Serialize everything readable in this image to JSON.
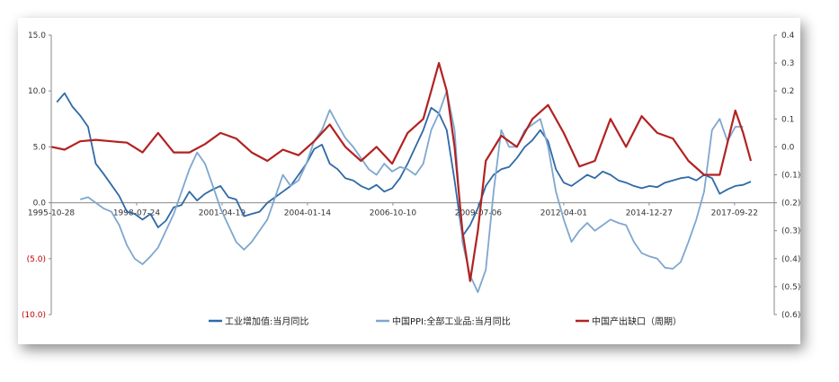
{
  "chart_data": {
    "type": "line",
    "title": "",
    "legend_position": "bottom",
    "grid": false,
    "x_ticks": [
      "1995-10-28",
      "1998-07-24",
      "2001-04-19",
      "2004-01-14",
      "2006-10-10",
      "2009-07-06",
      "2012-04-01",
      "2014-12-27",
      "2017-09-22"
    ],
    "x_range": [
      "1995-10-28",
      "2018-12-31"
    ],
    "y_left": {
      "ticks": [
        "15.0",
        "10.0",
        "5.0",
        "0.0",
        "(5.0)",
        "(10.0)"
      ],
      "range": [
        -10,
        15
      ]
    },
    "y_right": {
      "ticks": [
        "0.4",
        "0.3",
        "0.2",
        "0.1",
        "0.0",
        "(0.1)",
        "(0.2)",
        "(0.3)",
        "(0.4)",
        "(0.5)",
        "(0.6)"
      ],
      "range": [
        -0.6,
        0.4
      ]
    },
    "series": [
      {
        "name": "工业增加值:当月同比",
        "axis": "left",
        "color": "#2e6aa6",
        "points": [
          [
            "1996-01-01",
            9.0
          ],
          [
            "1996-04-01",
            9.8
          ],
          [
            "1996-07-01",
            8.6
          ],
          [
            "1996-10-01",
            7.8
          ],
          [
            "1997-01-01",
            6.8
          ],
          [
            "1997-04-01",
            3.5
          ],
          [
            "1997-07-01",
            2.6
          ],
          [
            "1997-10-01",
            1.6
          ],
          [
            "1998-01-01",
            0.6
          ],
          [
            "1998-04-01",
            -0.8
          ],
          [
            "1998-07-01",
            -1.0
          ],
          [
            "1998-10-01",
            -1.5
          ],
          [
            "1999-01-01",
            -1.0
          ],
          [
            "1999-04-01",
            -2.2
          ],
          [
            "1999-07-01",
            -1.6
          ],
          [
            "1999-10-01",
            -0.4
          ],
          [
            "2000-01-01",
            -0.2
          ],
          [
            "2000-04-01",
            1.0
          ],
          [
            "2000-07-01",
            0.2
          ],
          [
            "2000-10-01",
            0.8
          ],
          [
            "2001-01-01",
            1.2
          ],
          [
            "2001-04-01",
            1.5
          ],
          [
            "2001-07-01",
            0.5
          ],
          [
            "2001-10-01",
            0.3
          ],
          [
            "2002-01-01",
            -1.2
          ],
          [
            "2002-04-01",
            -1.0
          ],
          [
            "2002-07-01",
            -0.8
          ],
          [
            "2002-10-01",
            0.0
          ],
          [
            "2003-01-01",
            0.5
          ],
          [
            "2003-04-01",
            1.0
          ],
          [
            "2003-07-01",
            1.5
          ],
          [
            "2003-10-01",
            2.5
          ],
          [
            "2004-01-01",
            3.5
          ],
          [
            "2004-04-01",
            4.8
          ],
          [
            "2004-07-01",
            5.2
          ],
          [
            "2004-10-01",
            3.5
          ],
          [
            "2005-01-01",
            3.0
          ],
          [
            "2005-04-01",
            2.2
          ],
          [
            "2005-07-01",
            2.0
          ],
          [
            "2005-10-01",
            1.5
          ],
          [
            "2006-01-01",
            1.2
          ],
          [
            "2006-04-01",
            1.6
          ],
          [
            "2006-07-01",
            1.0
          ],
          [
            "2006-10-01",
            1.3
          ],
          [
            "2007-01-01",
            2.2
          ],
          [
            "2007-04-01",
            3.5
          ],
          [
            "2007-07-01",
            5.0
          ],
          [
            "2007-10-01",
            6.5
          ],
          [
            "2008-01-01",
            8.5
          ],
          [
            "2008-04-01",
            8.0
          ],
          [
            "2008-07-01",
            6.5
          ],
          [
            "2008-10-01",
            2.0
          ],
          [
            "2009-01-01",
            -3.0
          ],
          [
            "2009-04-01",
            -2.0
          ],
          [
            "2009-07-01",
            -0.5
          ],
          [
            "2009-10-01",
            1.5
          ],
          [
            "2010-01-01",
            2.5
          ],
          [
            "2010-04-01",
            3.0
          ],
          [
            "2010-07-01",
            3.2
          ],
          [
            "2010-10-01",
            4.0
          ],
          [
            "2011-01-01",
            5.0
          ],
          [
            "2011-04-01",
            5.6
          ],
          [
            "2011-07-01",
            6.5
          ],
          [
            "2011-10-01",
            5.5
          ],
          [
            "2012-01-01",
            3.0
          ],
          [
            "2012-04-01",
            1.8
          ],
          [
            "2012-07-01",
            1.5
          ],
          [
            "2012-10-01",
            2.0
          ],
          [
            "2013-01-01",
            2.5
          ],
          [
            "2013-04-01",
            2.2
          ],
          [
            "2013-07-01",
            2.8
          ],
          [
            "2013-10-01",
            2.5
          ],
          [
            "2014-01-01",
            2.0
          ],
          [
            "2014-04-01",
            1.8
          ],
          [
            "2014-07-01",
            1.5
          ],
          [
            "2014-10-01",
            1.3
          ],
          [
            "2015-01-01",
            1.5
          ],
          [
            "2015-04-01",
            1.4
          ],
          [
            "2015-07-01",
            1.8
          ],
          [
            "2015-10-01",
            2.0
          ],
          [
            "2016-01-01",
            2.2
          ],
          [
            "2016-04-01",
            2.3
          ],
          [
            "2016-07-01",
            2.0
          ],
          [
            "2016-10-01",
            2.5
          ],
          [
            "2017-01-01",
            2.2
          ],
          [
            "2017-04-01",
            0.8
          ],
          [
            "2017-07-01",
            1.2
          ],
          [
            "2017-10-01",
            1.5
          ],
          [
            "2018-01-01",
            1.6
          ],
          [
            "2018-04-01",
            1.9
          ]
        ]
      },
      {
        "name": "中国PPI:全部工业品:当月同比",
        "axis": "left",
        "color": "#7ea7cf",
        "points": [
          [
            "1996-10-01",
            0.3
          ],
          [
            "1997-01-01",
            0.5
          ],
          [
            "1997-04-01",
            0.0
          ],
          [
            "1997-07-01",
            -0.5
          ],
          [
            "1997-10-01",
            -0.8
          ],
          [
            "1998-01-01",
            -2.0
          ],
          [
            "1998-04-01",
            -3.8
          ],
          [
            "1998-07-01",
            -5.0
          ],
          [
            "1998-10-01",
            -5.5
          ],
          [
            "1999-01-01",
            -4.8
          ],
          [
            "1999-04-01",
            -4.0
          ],
          [
            "1999-07-01",
            -2.5
          ],
          [
            "1999-10-01",
            -1.0
          ],
          [
            "2000-01-01",
            1.0
          ],
          [
            "2000-04-01",
            3.0
          ],
          [
            "2000-07-01",
            4.5
          ],
          [
            "2000-10-01",
            3.5
          ],
          [
            "2001-01-01",
            1.5
          ],
          [
            "2001-04-01",
            -0.5
          ],
          [
            "2001-07-01",
            -2.0
          ],
          [
            "2001-10-01",
            -3.5
          ],
          [
            "2002-01-01",
            -4.2
          ],
          [
            "2002-04-01",
            -3.5
          ],
          [
            "2002-07-01",
            -2.5
          ],
          [
            "2002-10-01",
            -1.5
          ],
          [
            "2003-01-01",
            0.5
          ],
          [
            "2003-04-01",
            2.5
          ],
          [
            "2003-07-01",
            1.5
          ],
          [
            "2003-10-01",
            2.0
          ],
          [
            "2004-01-01",
            3.5
          ],
          [
            "2004-04-01",
            5.5
          ],
          [
            "2004-07-01",
            6.5
          ],
          [
            "2004-10-01",
            8.3
          ],
          [
            "2005-01-01",
            7.0
          ],
          [
            "2005-04-01",
            5.8
          ],
          [
            "2005-07-01",
            5.0
          ],
          [
            "2005-10-01",
            4.0
          ],
          [
            "2006-01-01",
            3.0
          ],
          [
            "2006-04-01",
            2.5
          ],
          [
            "2006-07-01",
            3.5
          ],
          [
            "2006-10-01",
            2.8
          ],
          [
            "2007-01-01",
            3.2
          ],
          [
            "2007-04-01",
            3.0
          ],
          [
            "2007-07-01",
            2.5
          ],
          [
            "2007-10-01",
            3.5
          ],
          [
            "2008-01-01",
            6.5
          ],
          [
            "2008-04-01",
            8.0
          ],
          [
            "2008-07-01",
            10.0
          ],
          [
            "2008-10-01",
            6.5
          ],
          [
            "2009-01-01",
            -3.5
          ],
          [
            "2009-04-01",
            -6.5
          ],
          [
            "2009-07-01",
            -8.0
          ],
          [
            "2009-10-01",
            -6.0
          ],
          [
            "2010-01-01",
            1.0
          ],
          [
            "2010-04-01",
            6.5
          ],
          [
            "2010-07-01",
            5.0
          ],
          [
            "2010-10-01",
            5.0
          ],
          [
            "2011-01-01",
            6.5
          ],
          [
            "2011-04-01",
            7.0
          ],
          [
            "2011-07-01",
            7.5
          ],
          [
            "2011-10-01",
            5.0
          ],
          [
            "2012-01-01",
            1.0
          ],
          [
            "2012-04-01",
            -1.5
          ],
          [
            "2012-07-01",
            -3.5
          ],
          [
            "2012-10-01",
            -2.5
          ],
          [
            "2013-01-01",
            -1.8
          ],
          [
            "2013-04-01",
            -2.5
          ],
          [
            "2013-07-01",
            -2.0
          ],
          [
            "2013-10-01",
            -1.5
          ],
          [
            "2014-01-01",
            -1.8
          ],
          [
            "2014-04-01",
            -2.0
          ],
          [
            "2014-07-01",
            -3.5
          ],
          [
            "2014-10-01",
            -4.5
          ],
          [
            "2015-01-01",
            -4.8
          ],
          [
            "2015-04-01",
            -5.0
          ],
          [
            "2015-07-01",
            -5.8
          ],
          [
            "2015-10-01",
            -5.9
          ],
          [
            "2016-01-01",
            -5.3
          ],
          [
            "2016-04-01",
            -3.5
          ],
          [
            "2016-07-01",
            -1.5
          ],
          [
            "2016-10-01",
            1.0
          ],
          [
            "2017-01-01",
            6.5
          ],
          [
            "2017-04-01",
            7.5
          ],
          [
            "2017-07-01",
            5.5
          ],
          [
            "2017-10-01",
            6.8
          ],
          [
            "2018-01-01",
            6.8
          ]
        ]
      },
      {
        "name": "中国产出缺口（周期）",
        "axis": "right",
        "color": "#b22222",
        "points": [
          [
            "1995-11-01",
            0.0
          ],
          [
            "1996-04-01",
            -0.01
          ],
          [
            "1996-10-01",
            0.02
          ],
          [
            "1997-04-01",
            0.025
          ],
          [
            "1997-10-01",
            0.02
          ],
          [
            "1998-04-01",
            0.015
          ],
          [
            "1998-10-01",
            -0.02
          ],
          [
            "1999-04-01",
            0.05
          ],
          [
            "1999-10-01",
            -0.02
          ],
          [
            "2000-04-01",
            -0.02
          ],
          [
            "2000-10-01",
            0.01
          ],
          [
            "2001-04-01",
            0.05
          ],
          [
            "2001-10-01",
            0.03
          ],
          [
            "2002-04-01",
            -0.02
          ],
          [
            "2002-10-01",
            -0.05
          ],
          [
            "2003-04-01",
            -0.01
          ],
          [
            "2003-10-01",
            -0.03
          ],
          [
            "2004-04-01",
            0.02
          ],
          [
            "2004-10-01",
            0.08
          ],
          [
            "2005-04-01",
            0.0
          ],
          [
            "2005-10-01",
            -0.05
          ],
          [
            "2006-04-01",
            0.0
          ],
          [
            "2006-10-01",
            -0.06
          ],
          [
            "2007-04-01",
            0.05
          ],
          [
            "2007-10-01",
            0.1
          ],
          [
            "2008-01-01",
            0.2
          ],
          [
            "2008-04-01",
            0.3
          ],
          [
            "2008-07-01",
            0.2
          ],
          [
            "2008-10-01",
            0.0
          ],
          [
            "2009-01-01",
            -0.3
          ],
          [
            "2009-04-01",
            -0.48
          ],
          [
            "2009-07-01",
            -0.3
          ],
          [
            "2009-10-01",
            -0.05
          ],
          [
            "2010-04-01",
            0.04
          ],
          [
            "2010-10-01",
            0.0
          ],
          [
            "2011-04-01",
            0.1
          ],
          [
            "2011-10-01",
            0.15
          ],
          [
            "2012-04-01",
            0.05
          ],
          [
            "2012-10-01",
            -0.07
          ],
          [
            "2013-04-01",
            -0.05
          ],
          [
            "2013-10-01",
            0.1
          ],
          [
            "2014-04-01",
            0.0
          ],
          [
            "2014-10-01",
            0.11
          ],
          [
            "2015-04-01",
            0.05
          ],
          [
            "2015-10-01",
            0.03
          ],
          [
            "2016-04-01",
            -0.05
          ],
          [
            "2016-10-01",
            -0.1
          ],
          [
            "2017-04-01",
            -0.1
          ],
          [
            "2017-10-01",
            0.13
          ],
          [
            "2018-01-01",
            0.05
          ],
          [
            "2018-04-01",
            -0.05
          ]
        ]
      }
    ]
  }
}
